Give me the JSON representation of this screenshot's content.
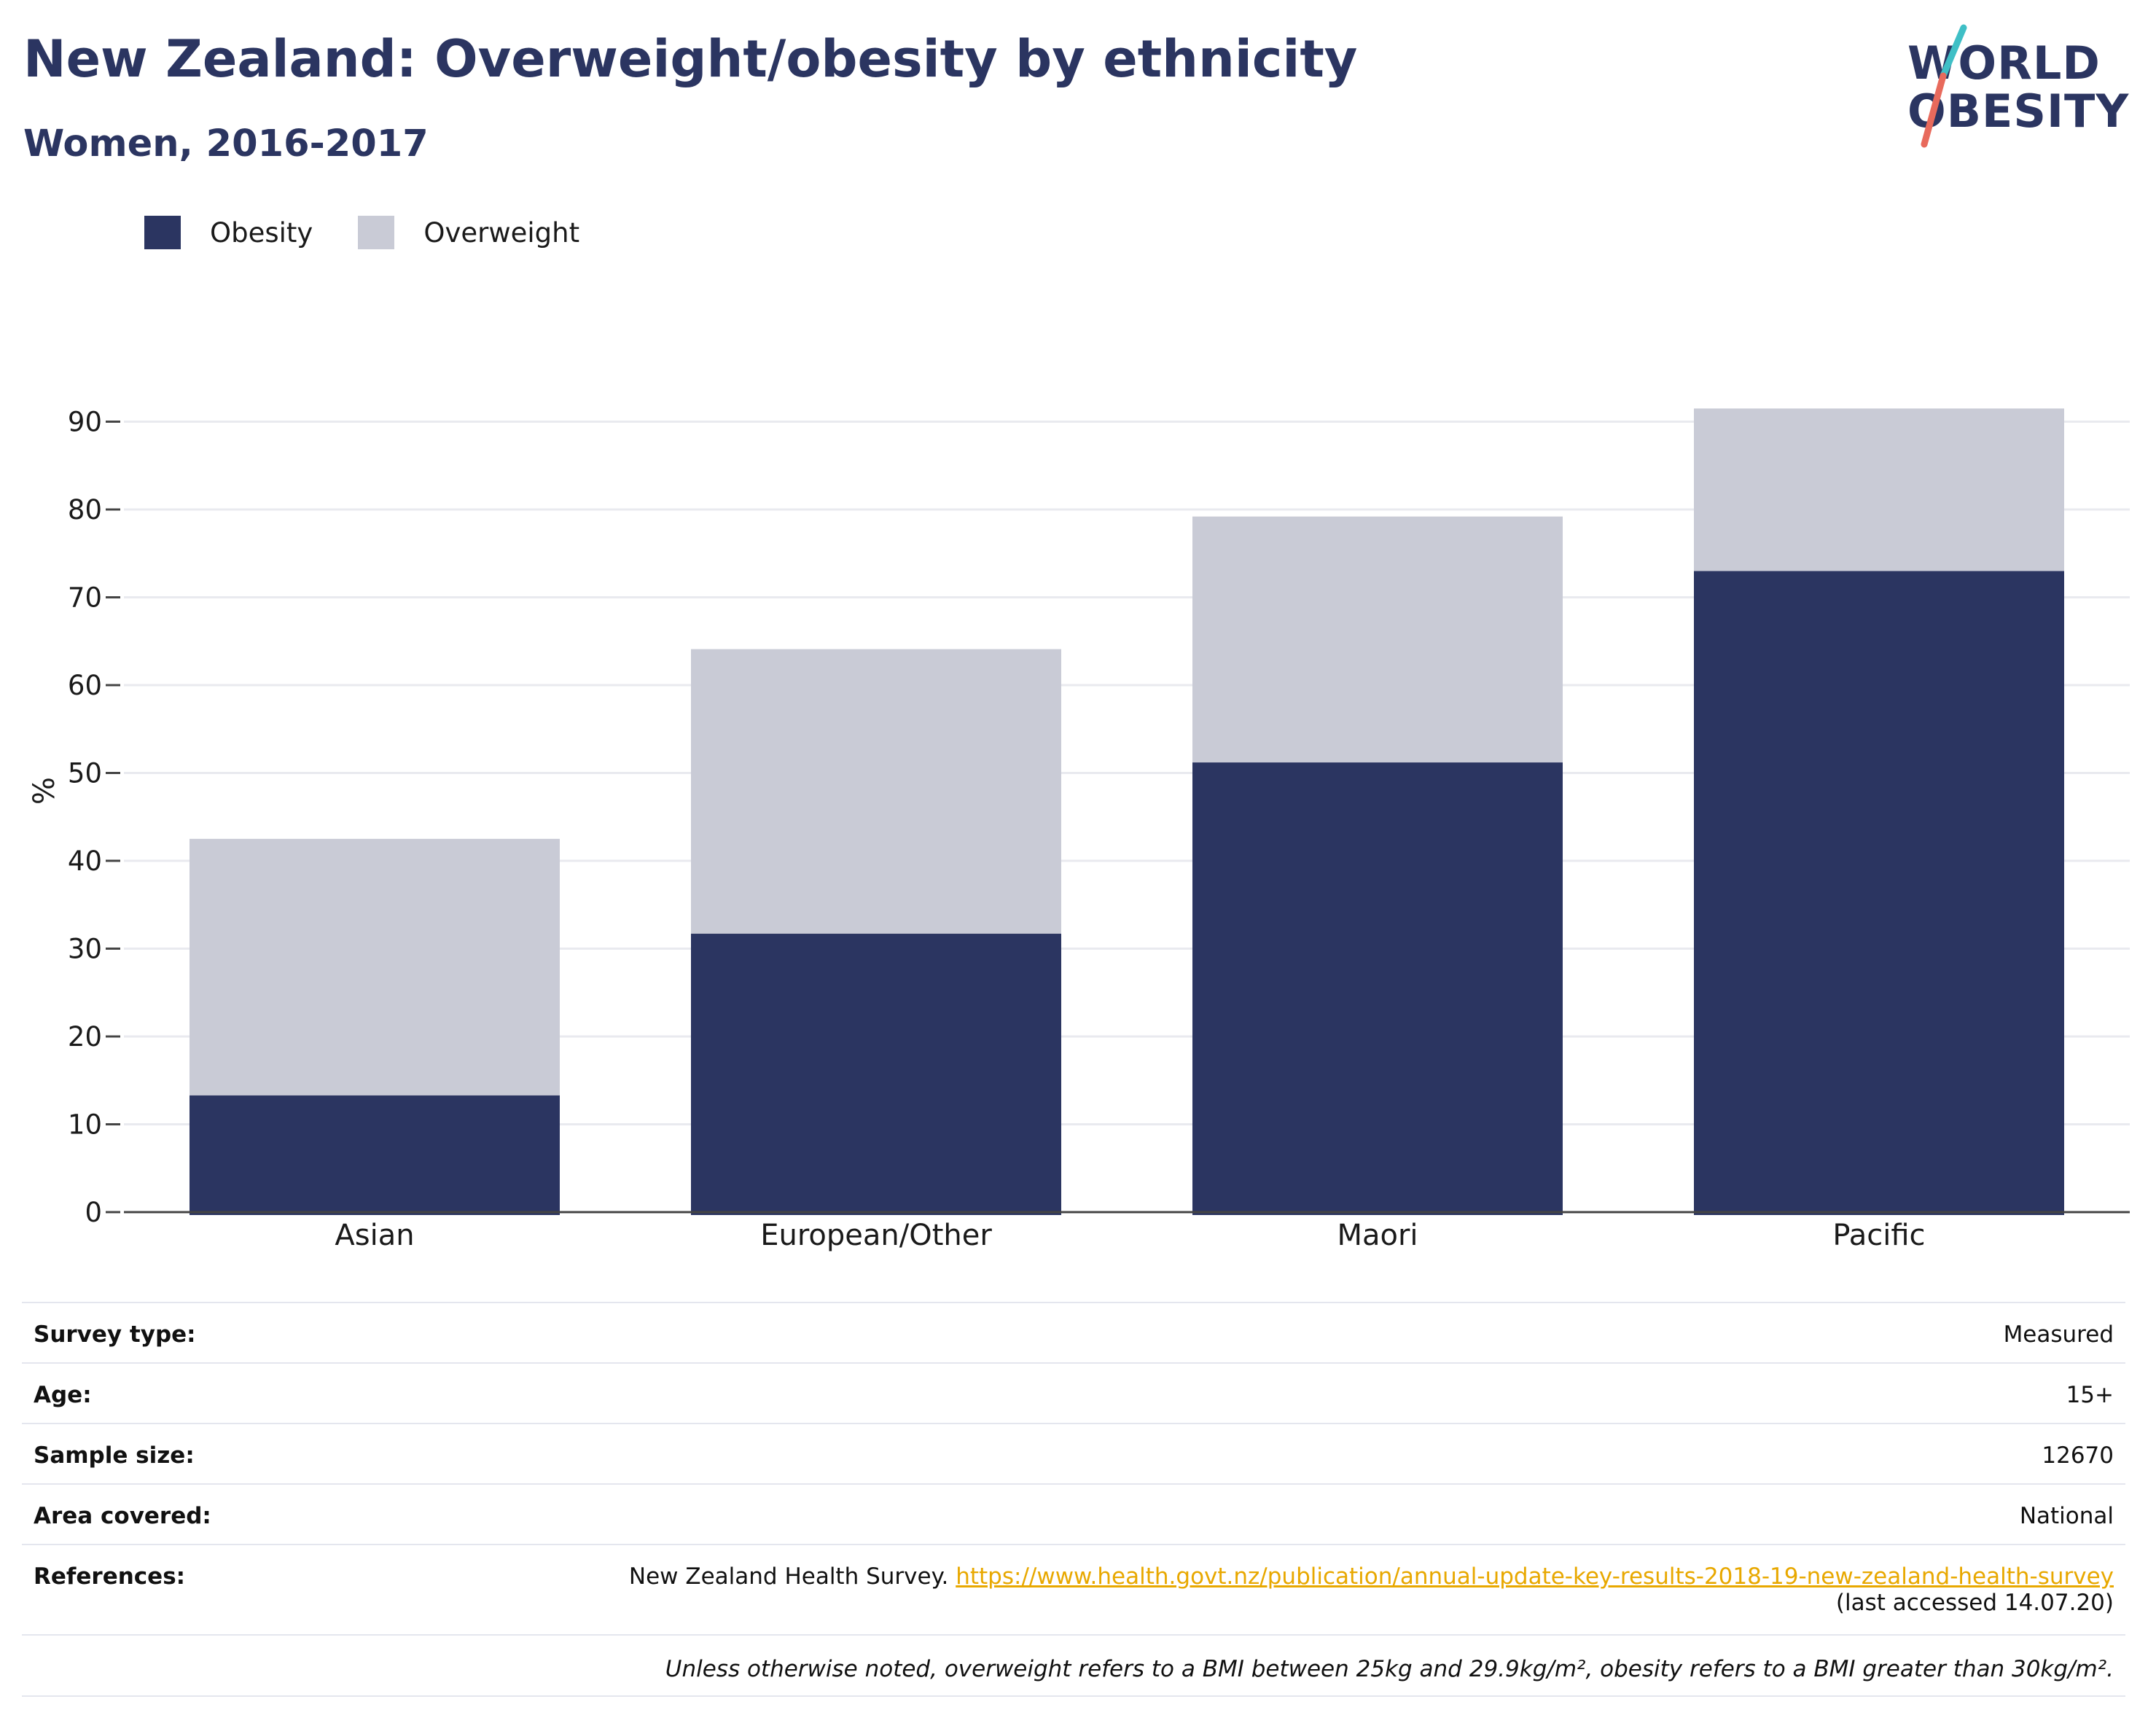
{
  "title": "New Zealand: Overweight/obesity by ethnicity",
  "subtitle": "Women, 2016-2017",
  "logo": {
    "line1": "WORLD",
    "line2": "OBESITY",
    "accent_colors": [
      "#3fbfc6",
      "#e86a5c"
    ]
  },
  "colors": {
    "obesity": "#2b3561",
    "overweight": "#c9cbd6",
    "title": "#2b3561",
    "link": "#e8a800"
  },
  "chart_data": {
    "type": "bar",
    "stacked": true,
    "categories": [
      "Asian",
      "European/Other",
      "Maori",
      "Pacific"
    ],
    "series": [
      {
        "name": "Obesity",
        "color": "#2b3561",
        "values": [
          13.3,
          31.7,
          51.2,
          73.0
        ]
      },
      {
        "name": "Overweight",
        "color": "#c9cbd6",
        "values": [
          29.2,
          32.4,
          28.0,
          18.5
        ]
      }
    ],
    "totals": [
      42.5,
      64.1,
      79.2,
      91.5
    ],
    "ylabel": "%",
    "xlabel": "",
    "yticks": [
      0,
      10,
      20,
      30,
      40,
      50,
      60,
      70,
      80,
      90
    ],
    "ylim": [
      0,
      95
    ],
    "grid": true,
    "legend_position": "top-left"
  },
  "info": {
    "survey_type": {
      "label": "Survey type:",
      "value": "Measured"
    },
    "age": {
      "label": "Age:",
      "value": "15+"
    },
    "sample_size": {
      "label": "Sample size:",
      "value": "12670"
    },
    "area_covered": {
      "label": "Area covered:",
      "value": "National"
    },
    "references": {
      "label": "References:",
      "text": "New Zealand Health Survey.",
      "link": "https://www.health.govt.nz/publication/annual-update-key-results-2018-19-new-zealand-health-survey",
      "accessed": "(last accessed 14.07.20)"
    },
    "note": "Unless otherwise noted, overweight refers to a BMI between 25kg and 29.9kg/m², obesity refers to a BMI greater than 30kg/m²."
  }
}
